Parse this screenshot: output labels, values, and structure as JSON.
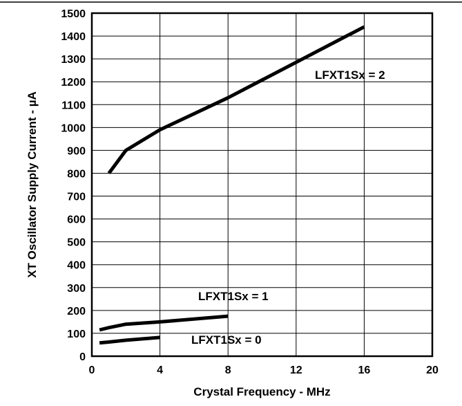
{
  "chart_data": {
    "type": "line",
    "title": "",
    "xlabel": "Crystal Frequency - MHz",
    "ylabel": "XT Oscillator Supply Current - µA",
    "xlim": [
      0,
      20
    ],
    "ylim": [
      0,
      1500
    ],
    "xticks": [
      0,
      4,
      8,
      12,
      16,
      20
    ],
    "yticks": [
      0,
      100,
      200,
      300,
      400,
      500,
      600,
      700,
      800,
      900,
      1000,
      1100,
      1200,
      1300,
      1400,
      1500
    ],
    "grid": true,
    "legend": "none",
    "series": [
      {
        "name": "LFXT1Sx = 2",
        "x": [
          1,
          2,
          4,
          8,
          16
        ],
        "y": [
          800,
          900,
          990,
          1130,
          1440
        ]
      },
      {
        "name": "LFXT1Sx = 1",
        "x": [
          0.45,
          1,
          2,
          4,
          8
        ],
        "y": [
          115,
          125,
          140,
          150,
          175
        ]
      },
      {
        "name": "LFXT1Sx = 0",
        "x": [
          0.45,
          1,
          2,
          4
        ],
        "y": [
          58,
          62,
          70,
          82
        ]
      }
    ],
    "colors": {
      "line": "#000000",
      "grid": "#000000",
      "background": "#ffffff"
    }
  }
}
